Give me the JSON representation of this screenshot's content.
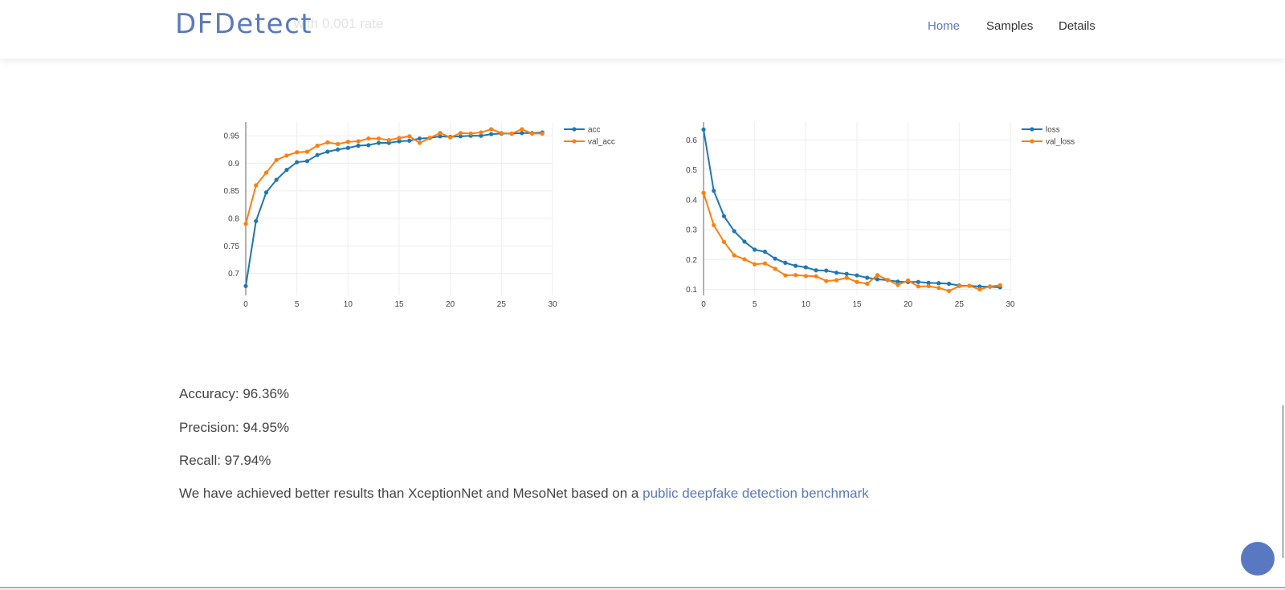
{
  "header": {
    "brand": "DFDetect",
    "ghost_text": "with 0.001 rate",
    "nav": [
      {
        "label": "Home",
        "active": true
      },
      {
        "label": "Samples",
        "active": false
      },
      {
        "label": "Details",
        "active": false
      }
    ]
  },
  "stats": {
    "accuracy": "Accuracy: 96.36%",
    "precision": "Precision: 94.95%",
    "recall": "Recall: 97.94%"
  },
  "note": {
    "text": "We have achieved better results than XceptionNet and MesoNet based on a ",
    "link": "public deepfake detection benchmark"
  },
  "colors": {
    "accent": "#5b79bd",
    "series_blue": "#1f77b4",
    "series_orange": "#ff7f0e"
  },
  "chart_data": [
    {
      "type": "line",
      "title": "",
      "xlabel": "",
      "ylabel": "",
      "xlim": [
        0,
        30
      ],
      "ylim": [
        0.66,
        0.975
      ],
      "xticks": [
        0,
        5,
        10,
        15,
        20,
        25,
        30
      ],
      "yticks": [
        0.7,
        0.75,
        0.8,
        0.85,
        0.9,
        0.95
      ],
      "ytick_labels": [
        "0.7",
        "0.75",
        "0.8",
        "0.85",
        "0.9",
        "0.95"
      ],
      "grid": true,
      "legend": "top-right",
      "x": [
        0,
        1,
        2,
        3,
        4,
        5,
        6,
        7,
        8,
        9,
        10,
        11,
        12,
        13,
        14,
        15,
        16,
        17,
        18,
        19,
        20,
        21,
        22,
        23,
        24,
        25,
        26,
        27,
        28,
        29
      ],
      "series": [
        {
          "name": "acc",
          "color": "#1f77b4",
          "values": [
            0.677,
            0.795,
            0.847,
            0.87,
            0.888,
            0.902,
            0.904,
            0.915,
            0.921,
            0.925,
            0.928,
            0.932,
            0.933,
            0.937,
            0.937,
            0.94,
            0.941,
            0.945,
            0.946,
            0.949,
            0.948,
            0.949,
            0.95,
            0.95,
            0.953,
            0.954,
            0.954,
            0.955,
            0.955,
            0.956
          ]
        },
        {
          "name": "val_acc",
          "color": "#ff7f0e",
          "values": [
            0.79,
            0.86,
            0.883,
            0.906,
            0.914,
            0.92,
            0.921,
            0.932,
            0.938,
            0.935,
            0.939,
            0.94,
            0.945,
            0.945,
            0.942,
            0.946,
            0.949,
            0.937,
            0.946,
            0.955,
            0.947,
            0.955,
            0.954,
            0.956,
            0.962,
            0.955,
            0.954,
            0.962,
            0.954,
            0.954
          ]
        }
      ]
    },
    {
      "type": "line",
      "title": "",
      "xlabel": "",
      "ylabel": "",
      "xlim": [
        0,
        30
      ],
      "ylim": [
        0.08,
        0.66
      ],
      "xticks": [
        0,
        5,
        10,
        15,
        20,
        25,
        30
      ],
      "yticks": [
        0.1,
        0.2,
        0.3,
        0.4,
        0.5,
        0.6
      ],
      "ytick_labels": [
        "0.1",
        "0.2",
        "0.3",
        "0.4",
        "0.5",
        "0.6"
      ],
      "grid": true,
      "legend": "top-right",
      "x": [
        0,
        1,
        2,
        3,
        4,
        5,
        6,
        7,
        8,
        9,
        10,
        11,
        12,
        13,
        14,
        15,
        16,
        17,
        18,
        19,
        20,
        21,
        22,
        23,
        24,
        25,
        26,
        27,
        28,
        29
      ],
      "series": [
        {
          "name": "loss",
          "color": "#1f77b4",
          "values": [
            0.635,
            0.43,
            0.345,
            0.295,
            0.26,
            0.233,
            0.226,
            0.203,
            0.189,
            0.179,
            0.174,
            0.164,
            0.163,
            0.156,
            0.152,
            0.147,
            0.139,
            0.134,
            0.131,
            0.126,
            0.125,
            0.125,
            0.122,
            0.121,
            0.119,
            0.113,
            0.112,
            0.11,
            0.109,
            0.107
          ]
        },
        {
          "name": "val_loss",
          "color": "#ff7f0e",
          "values": [
            0.423,
            0.315,
            0.259,
            0.214,
            0.201,
            0.184,
            0.187,
            0.169,
            0.147,
            0.148,
            0.145,
            0.144,
            0.128,
            0.131,
            0.139,
            0.125,
            0.119,
            0.148,
            0.132,
            0.115,
            0.13,
            0.11,
            0.111,
            0.105,
            0.095,
            0.111,
            0.112,
            0.1,
            0.11,
            0.114
          ]
        }
      ]
    }
  ]
}
